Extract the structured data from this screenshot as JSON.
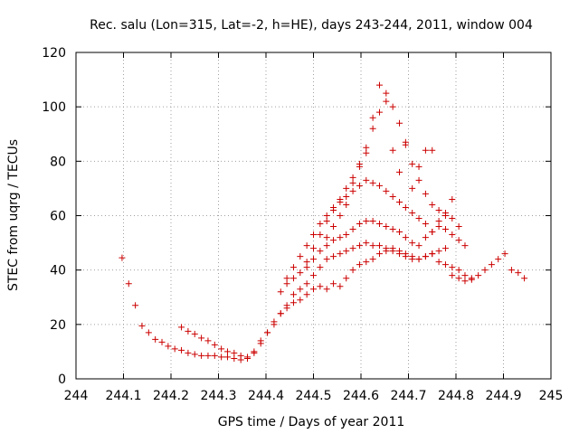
{
  "chart_data": {
    "type": "scatter",
    "title": "Rec. salu (Lon=315, Lat=-2, h=HE), days 243-244, 2011, window 004",
    "xlabel": "GPS time / Days of year 2011",
    "ylabel": "STEC from uqrg / TECUs",
    "xlim": [
      244,
      245
    ],
    "ylim": [
      0,
      120
    ],
    "xticks": [
      "244",
      "244.1",
      "244.2",
      "244.3",
      "244.4",
      "244.5",
      "244.6",
      "244.7",
      "244.8",
      "244.9",
      "245"
    ],
    "yticks": [
      "0",
      "20",
      "40",
      "60",
      "80",
      "100",
      "120"
    ],
    "grid": true,
    "marker": "plus",
    "color": "#cc0000",
    "series": [
      {
        "x": [
          244.097,
          244.111,
          244.125,
          244.139,
          244.153,
          244.167,
          244.181,
          244.194,
          244.208,
          244.222,
          244.236,
          244.25,
          244.264,
          244.278,
          244.292,
          244.306,
          244.319,
          244.333,
          244.347,
          244.361,
          244.375,
          244.222,
          244.236,
          244.25,
          244.264,
          244.278,
          244.292,
          244.306,
          244.319,
          244.333,
          244.347,
          244.361,
          244.375,
          244.389,
          244.403,
          244.417,
          244.431,
          244.444,
          244.458,
          244.472,
          244.486,
          244.5,
          244.514,
          244.528,
          244.542,
          244.556,
          244.569,
          244.583,
          244.597,
          244.611,
          244.625,
          244.639,
          244.653,
          244.667,
          244.681,
          244.694,
          244.708,
          244.722,
          244.736,
          244.75,
          244.764,
          244.778,
          244.792,
          244.806,
          244.819,
          244.833,
          244.847,
          244.861,
          244.875,
          244.889,
          244.903,
          244.917,
          244.931,
          244.944,
          244.389,
          244.403,
          244.417,
          244.431,
          244.444,
          244.458,
          244.472,
          244.486,
          244.5,
          244.514,
          244.528,
          244.542,
          244.556,
          244.569,
          244.583,
          244.597,
          244.611,
          244.625,
          244.639,
          244.653,
          244.667,
          244.681,
          244.694,
          244.708,
          244.722,
          244.736,
          244.75,
          244.764,
          244.778,
          244.792,
          244.806,
          244.819,
          244.833,
          244.431,
          244.444,
          244.458,
          244.472,
          244.486,
          244.5,
          244.514,
          244.528,
          244.542,
          244.556,
          244.569,
          244.583,
          244.597,
          244.611,
          244.625,
          244.639,
          244.653,
          244.667,
          244.681,
          244.694,
          244.708,
          244.722,
          244.736,
          244.75,
          244.764,
          244.778,
          244.792,
          244.806,
          244.819,
          244.444,
          244.458,
          244.472,
          244.486,
          244.5,
          244.514,
          244.528,
          244.542,
          244.556,
          244.569,
          244.583,
          244.597,
          244.611,
          244.625,
          244.639,
          244.653,
          244.667,
          244.681,
          244.694,
          244.708,
          244.722,
          244.736,
          244.75,
          244.764,
          244.778,
          244.792,
          244.806,
          244.486,
          244.5,
          244.514,
          244.528,
          244.542,
          244.556,
          244.569,
          244.583,
          244.597,
          244.611,
          244.625,
          244.639,
          244.653,
          244.667,
          244.681,
          244.694,
          244.708,
          244.722,
          244.736,
          244.75,
          244.764,
          244.778,
          244.792,
          244.528,
          244.542,
          244.556,
          244.569,
          244.583,
          244.597,
          244.611,
          244.625,
          244.639,
          244.653,
          244.667,
          244.681,
          244.694,
          244.708,
          244.722,
          244.736,
          244.75
        ],
        "y": [
          44.5,
          35,
          27,
          19.5,
          17,
          14.5,
          13.5,
          12,
          11,
          10.5,
          9.5,
          9,
          8.5,
          8.5,
          8.5,
          8,
          8,
          7.5,
          7,
          7.5,
          9.5,
          19,
          17.5,
          16.5,
          15,
          14,
          12.5,
          11,
          10,
          9.5,
          8.5,
          8,
          10,
          14,
          17,
          20,
          24,
          26,
          28,
          29,
          31,
          33,
          34,
          33,
          35,
          34,
          37,
          40,
          42,
          43,
          44,
          46,
          47,
          48,
          47,
          46,
          45,
          44,
          45,
          46,
          47,
          48,
          38,
          37,
          36,
          36.5,
          38,
          40,
          42,
          44,
          46,
          40,
          39,
          37,
          13,
          17,
          21,
          24,
          27,
          31,
          33,
          35,
          38,
          41,
          44,
          45,
          46,
          47,
          48,
          49,
          50,
          49,
          49,
          48,
          47,
          46,
          45,
          44,
          44,
          45,
          46,
          43,
          42,
          41,
          40,
          38,
          37,
          32,
          35,
          37,
          39,
          41,
          44,
          47,
          49,
          51,
          52,
          53,
          55,
          57,
          58,
          58,
          57,
          56,
          55,
          54,
          52,
          50,
          49,
          52,
          54,
          56,
          55,
          53,
          51,
          49,
          37,
          41,
          45,
          49,
          53,
          57,
          60,
          63,
          65,
          67,
          69,
          71,
          73,
          72,
          71,
          69,
          67,
          65,
          63,
          61,
          59,
          57,
          54,
          58,
          61,
          59,
          56,
          43,
          48,
          53,
          58,
          62,
          66,
          70,
          74,
          78,
          85,
          92,
          98,
          102,
          100,
          94,
          87,
          79,
          73,
          68,
          64,
          62,
          60,
          66,
          52,
          56,
          60,
          64,
          72,
          79,
          83,
          96,
          108,
          105,
          84,
          76,
          86,
          70,
          78,
          84,
          84
        ]
      }
    ]
  }
}
